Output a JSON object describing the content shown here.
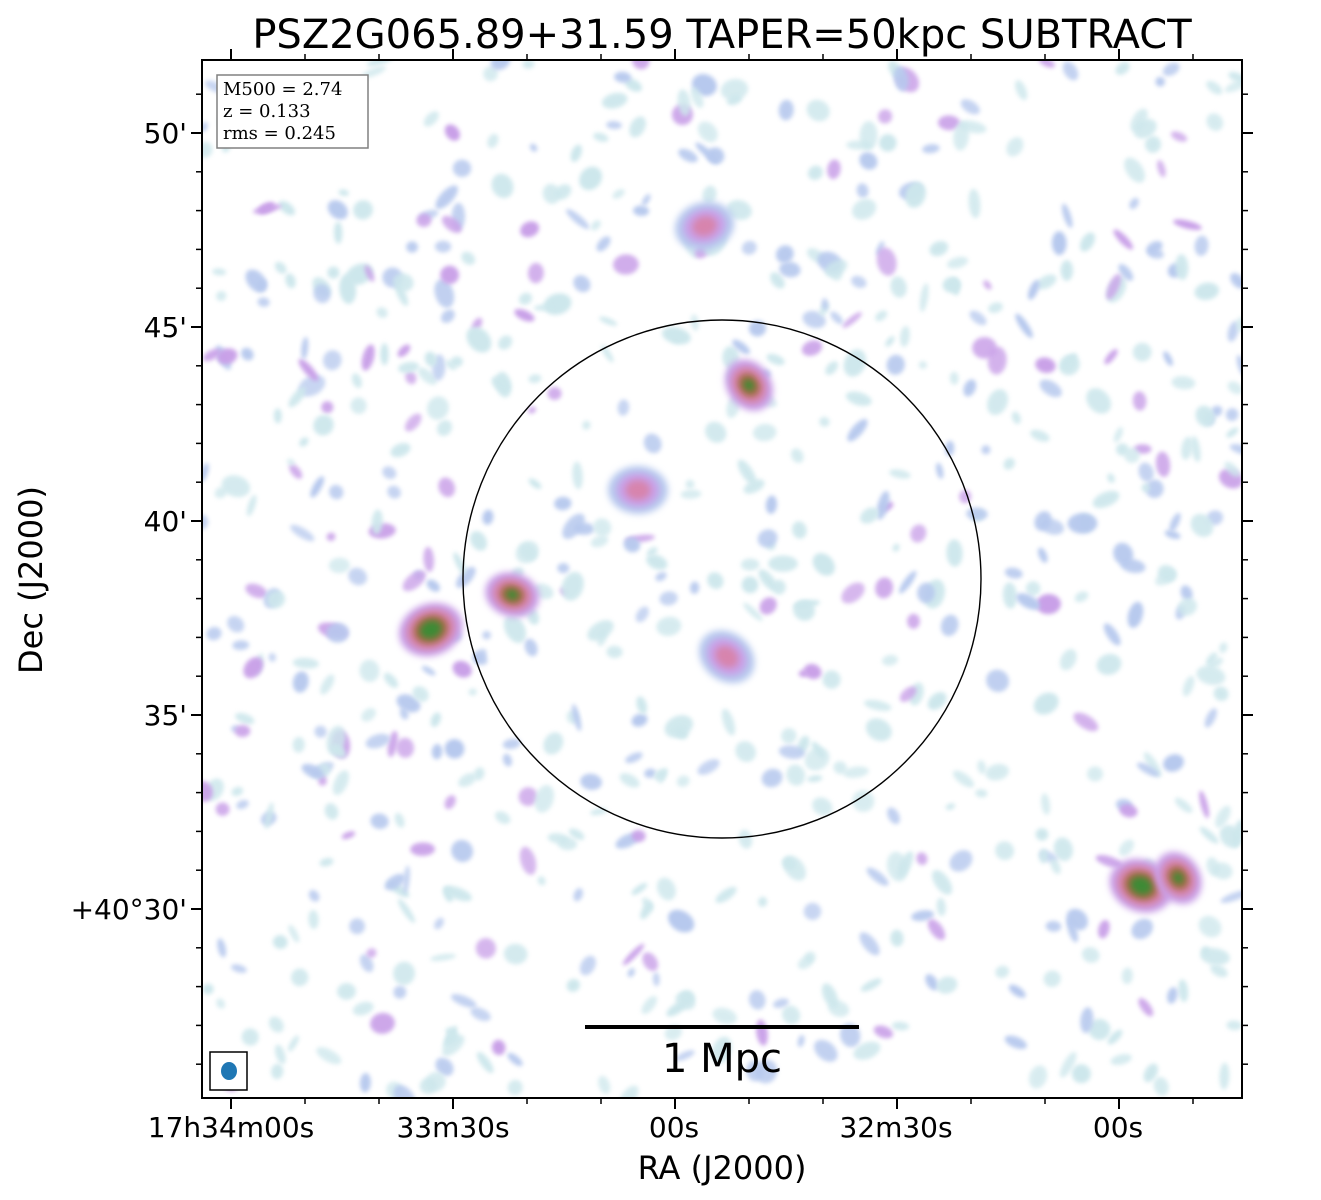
{
  "chart_data": {
    "type": "heatmap",
    "title": "PSZ2G065.89+31.59 TAPER=50kpc SUBTRACT",
    "xlabel": "RA (J2000)",
    "ylabel": "Dec (J2000)",
    "x_ticks": [
      "17h34m00s",
      "33m30s",
      "00s",
      "32m30s",
      "00s"
    ],
    "y_ticks": [
      "50'",
      "45'",
      "40'",
      "35'",
      "+40°30'"
    ],
    "grid": false,
    "colormap": [
      "#cde7ec",
      "#b7c9ee",
      "#c9a0e8",
      "#d784ad",
      "#a86a47",
      "#3e8a35"
    ],
    "info_box": {
      "lines": [
        "M500 = 2.74",
        "z = 0.133",
        "rms = 0.245"
      ],
      "placement": "top-left"
    },
    "scale_bar": {
      "label": "1 Mpc",
      "placement": "bottom-center"
    },
    "beam": {
      "placement": "bottom-left",
      "color": "#1f77b4"
    },
    "circle": {
      "placement": "center",
      "color": "#000000"
    },
    "sources": [
      {
        "ra": "17h33m33s",
        "dec": "+40°37.2'",
        "level": "peak"
      },
      {
        "ra": "17h33m22s",
        "dec": "+40°38.1'",
        "level": "high"
      },
      {
        "ra": "17h32m50s",
        "dec": "+40°43.5'",
        "level": "high"
      },
      {
        "ra": "17h33m05s",
        "dec": "+40°40.8'",
        "level": "medium"
      },
      {
        "ra": "17h32m53s",
        "dec": "+40°36.5'",
        "level": "medium"
      },
      {
        "ra": "17h32m56s",
        "dec": "+40°47.6'",
        "level": "medium"
      },
      {
        "ra": "17h31m57s",
        "dec": "+40°30.6'",
        "level": "peak"
      },
      {
        "ra": "17h31m52s",
        "dec": "+40°30.8'",
        "level": "high"
      }
    ]
  }
}
